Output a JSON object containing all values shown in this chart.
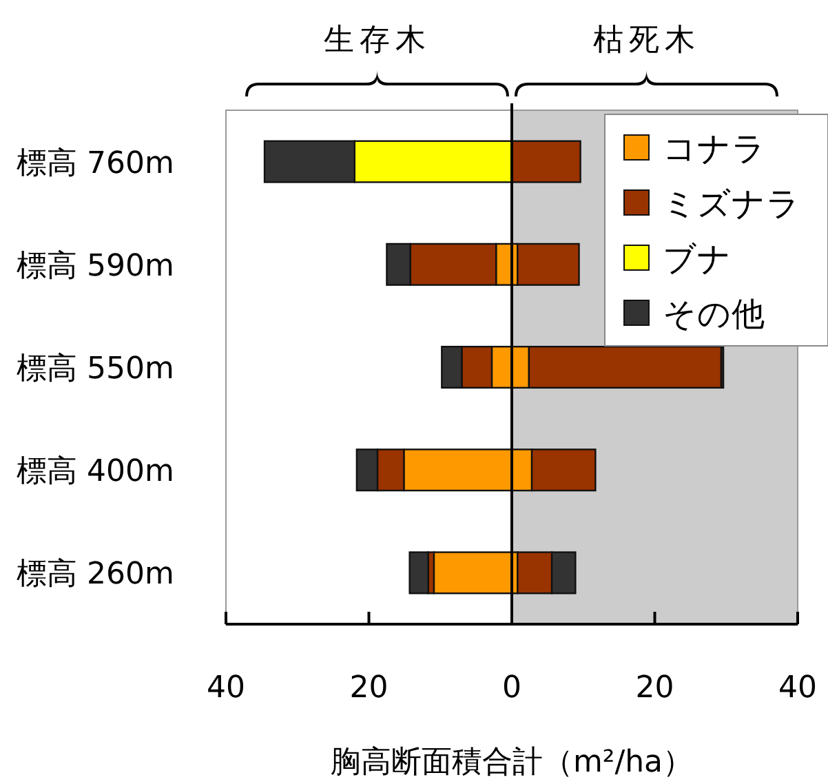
{
  "chart_data": {
    "type": "bar",
    "orientation": "horizontal",
    "stacked": true,
    "categories": [
      "標高 760m",
      "標高 590m",
      "標高 550m",
      "標高 400m",
      "標高 260m"
    ],
    "series": [
      {
        "name": "コナラ",
        "color": "#ff9900",
        "values": [
          null,
          -2.2,
          -2.8,
          -15.1,
          -10.9
        ]
      },
      {
        "name": "ミズナラ",
        "color": "#993300",
        "values": [
          null,
          -12.0,
          -4.2,
          -3.7,
          -0.8
        ]
      },
      {
        "name": "ブナ",
        "color": "#ffff00",
        "values": [
          -22.0,
          null,
          null,
          null,
          null
        ]
      },
      {
        "name": "その他",
        "color": "#333333",
        "values": [
          -12.6,
          -3.3,
          -2.8,
          -2.9,
          -2.6
        ]
      },
      {
        "color": "#ff9900",
        "values": [
          null,
          0.8,
          2.4,
          2.8,
          0.8
        ]
      },
      {
        "color": "#993300",
        "values": [
          9.6,
          8.6,
          26.9,
          8.9,
          4.8
        ]
      },
      {
        "color": "#333333",
        "values": [
          null,
          null,
          0.3,
          null,
          3.3
        ]
      }
    ],
    "xlim": [
      -40,
      40
    ],
    "xticks": [
      {
        "value": -40,
        "label": "40"
      },
      {
        "value": -20,
        "label": "20"
      },
      0,
      20,
      40
    ],
    "xlabel": "胸高断面積合計（m²/ha）",
    "bands": [
      {
        "axis": "x",
        "from": 0,
        "to": 40,
        "color": "#cccccc"
      }
    ],
    "annotations": [
      "生存木",
      "枯死木"
    ],
    "legend": "top right"
  }
}
